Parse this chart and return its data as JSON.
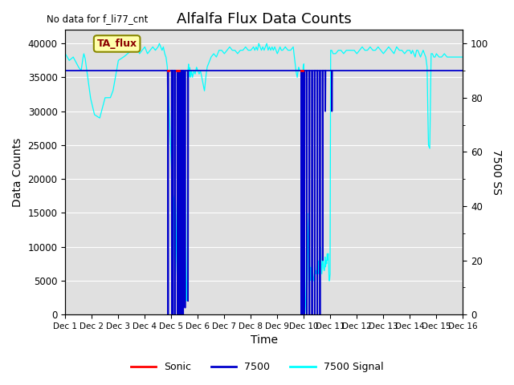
{
  "title": "Alfalfa Flux Data Counts",
  "subtitle": "No data for f_li77_cnt",
  "xlabel": "Time",
  "ylabel": "Data Counts",
  "ylabel_right": "7500 SS",
  "ylim": [
    0,
    42000
  ],
  "ylim_right": [
    0,
    105
  ],
  "xlim": [
    0,
    15
  ],
  "xtick_labels": [
    "Dec 1",
    "Dec 2",
    "Dec 3",
    "Dec 4",
    "Dec 5",
    "Dec 6",
    "Dec 7",
    "Dec 8",
    "Dec 9",
    "Dec 10",
    "Dec 11",
    "Dec 12",
    "Dec 13",
    "Dec 14",
    "Dec 15",
    "Dec 16"
  ],
  "yticks_left": [
    0,
    5000,
    10000,
    15000,
    20000,
    25000,
    30000,
    35000,
    40000
  ],
  "yticks_right": [
    0,
    20,
    40,
    60,
    80,
    100
  ],
  "background_color": "#e0e0e0",
  "legend_items": [
    "Sonic",
    "7500",
    "7500 Signal"
  ],
  "legend_colors": [
    "#ff0000",
    "#0000cc",
    "#00ccff"
  ],
  "ta_flux_label": "TA_flux",
  "title_fontsize": 13,
  "axis_fontsize": 10,
  "cyan_pts": [
    [
      0.0,
      38500
    ],
    [
      0.15,
      37500
    ],
    [
      0.3,
      38000
    ],
    [
      0.5,
      36500
    ],
    [
      0.6,
      36000
    ],
    [
      0.65,
      37500
    ],
    [
      0.7,
      38500
    ],
    [
      0.75,
      37800
    ],
    [
      0.85,
      35000
    ],
    [
      0.95,
      32000
    ],
    [
      1.1,
      29500
    ],
    [
      1.3,
      29000
    ],
    [
      1.5,
      32000
    ],
    [
      1.7,
      32000
    ],
    [
      1.8,
      33000
    ],
    [
      2.0,
      37500
    ],
    [
      2.2,
      38000
    ],
    [
      2.5,
      39000
    ],
    [
      2.7,
      39500
    ],
    [
      2.8,
      38500
    ],
    [
      2.9,
      39000
    ],
    [
      3.0,
      39500
    ],
    [
      3.1,
      38500
    ],
    [
      3.2,
      39000
    ],
    [
      3.3,
      39500
    ],
    [
      3.4,
      39000
    ],
    [
      3.5,
      39500
    ],
    [
      3.55,
      40000
    ],
    [
      3.6,
      39500
    ],
    [
      3.65,
      39000
    ],
    [
      3.7,
      39500
    ],
    [
      3.75,
      38500
    ],
    [
      3.8,
      38000
    ],
    [
      3.85,
      36500
    ],
    [
      3.9,
      32000
    ],
    [
      3.95,
      27000
    ],
    [
      4.0,
      22000
    ],
    [
      4.05,
      18000
    ],
    [
      4.1,
      17000
    ],
    [
      4.12,
      9000
    ],
    [
      4.15,
      5000
    ],
    [
      4.18,
      9000
    ],
    [
      4.2,
      14000
    ],
    [
      4.22,
      17000
    ],
    [
      4.25,
      20000
    ],
    [
      4.27,
      9000
    ],
    [
      4.3,
      5000
    ],
    [
      4.32,
      1000
    ],
    [
      4.35,
      500
    ],
    [
      4.37,
      3000
    ],
    [
      4.4,
      7000
    ],
    [
      4.45,
      9000
    ],
    [
      4.48,
      13000
    ],
    [
      4.5,
      16000
    ],
    [
      4.52,
      9000
    ],
    [
      4.55,
      5000
    ],
    [
      4.57,
      2000
    ],
    [
      4.59,
      5000
    ],
    [
      4.6,
      9000
    ],
    [
      4.63,
      36000
    ],
    [
      4.65,
      37000
    ],
    [
      4.68,
      35000
    ],
    [
      4.7,
      36500
    ],
    [
      4.73,
      35000
    ],
    [
      4.76,
      36000
    ],
    [
      4.8,
      35000
    ],
    [
      4.85,
      36000
    ],
    [
      4.9,
      35500
    ],
    [
      4.95,
      36500
    ],
    [
      5.0,
      36000
    ],
    [
      5.05,
      35500
    ],
    [
      5.1,
      36000
    ],
    [
      5.15,
      35000
    ],
    [
      5.2,
      34000
    ],
    [
      5.25,
      33000
    ],
    [
      5.3,
      35000
    ],
    [
      5.35,
      36500
    ],
    [
      5.4,
      37000
    ],
    [
      5.5,
      38000
    ],
    [
      5.6,
      38500
    ],
    [
      5.7,
      38000
    ],
    [
      5.8,
      39000
    ],
    [
      5.9,
      39000
    ],
    [
      6.0,
      38500
    ],
    [
      6.1,
      39000
    ],
    [
      6.2,
      39500
    ],
    [
      6.3,
      39000
    ],
    [
      6.4,
      39000
    ],
    [
      6.5,
      38500
    ],
    [
      6.6,
      39000
    ],
    [
      6.7,
      39000
    ],
    [
      6.8,
      39500
    ],
    [
      6.9,
      39000
    ],
    [
      7.0,
      39000
    ],
    [
      7.1,
      39500
    ],
    [
      7.15,
      39000
    ],
    [
      7.2,
      39500
    ],
    [
      7.25,
      39000
    ],
    [
      7.3,
      40000
    ],
    [
      7.35,
      39500
    ],
    [
      7.4,
      39000
    ],
    [
      7.45,
      39500
    ],
    [
      7.5,
      39000
    ],
    [
      7.55,
      39500
    ],
    [
      7.6,
      40000
    ],
    [
      7.65,
      39000
    ],
    [
      7.7,
      39500
    ],
    [
      7.75,
      39000
    ],
    [
      7.8,
      39500
    ],
    [
      7.85,
      39000
    ],
    [
      7.9,
      39500
    ],
    [
      7.95,
      39000
    ],
    [
      8.0,
      38500
    ],
    [
      8.05,
      39000
    ],
    [
      8.1,
      39500
    ],
    [
      8.15,
      39000
    ],
    [
      8.2,
      39000
    ],
    [
      8.3,
      39500
    ],
    [
      8.4,
      39000
    ],
    [
      8.5,
      39000
    ],
    [
      8.6,
      39500
    ],
    [
      8.7,
      36000
    ],
    [
      8.75,
      35000
    ],
    [
      8.8,
      36500
    ],
    [
      8.85,
      36000
    ],
    [
      8.88,
      36000
    ],
    [
      8.9,
      35000
    ],
    [
      8.93,
      34000
    ],
    [
      8.95,
      33000
    ],
    [
      8.97,
      36500
    ],
    [
      9.0,
      37000
    ],
    [
      9.02,
      15000
    ],
    [
      9.04,
      6000
    ],
    [
      9.06,
      2000
    ],
    [
      9.08,
      500
    ],
    [
      9.1,
      0
    ],
    [
      9.12,
      3000
    ],
    [
      9.14,
      6000
    ],
    [
      9.16,
      12000
    ],
    [
      9.18,
      15000
    ],
    [
      9.2,
      14000
    ],
    [
      9.22,
      6000
    ],
    [
      9.24,
      5000
    ],
    [
      9.26,
      7000
    ],
    [
      9.28,
      5000
    ],
    [
      9.3,
      6000
    ],
    [
      9.32,
      7000
    ],
    [
      9.34,
      6000
    ],
    [
      9.36,
      5000
    ],
    [
      9.38,
      5000
    ],
    [
      9.4,
      6000
    ],
    [
      9.42,
      8000
    ],
    [
      9.44,
      6000
    ],
    [
      9.46,
      6500
    ],
    [
      9.48,
      6000
    ],
    [
      9.5,
      6500
    ],
    [
      9.52,
      6000
    ],
    [
      9.54,
      8000
    ],
    [
      9.56,
      6000
    ],
    [
      9.58,
      6000
    ],
    [
      9.6,
      8000
    ],
    [
      9.62,
      10000
    ],
    [
      9.65,
      8000
    ],
    [
      9.68,
      6000
    ],
    [
      9.7,
      8000
    ],
    [
      9.72,
      8700
    ],
    [
      9.74,
      7000
    ],
    [
      9.76,
      6500
    ],
    [
      9.78,
      6500
    ],
    [
      9.8,
      8500
    ],
    [
      9.82,
      7000
    ],
    [
      9.84,
      8000
    ],
    [
      9.86,
      7500
    ],
    [
      9.88,
      9000
    ],
    [
      9.9,
      8000
    ],
    [
      9.92,
      9000
    ],
    [
      9.95,
      5000
    ],
    [
      9.97,
      5000
    ],
    [
      9.99,
      6000
    ],
    [
      10.01,
      39000
    ],
    [
      10.05,
      39000
    ],
    [
      10.1,
      38500
    ],
    [
      10.2,
      38500
    ],
    [
      10.3,
      39000
    ],
    [
      10.4,
      39000
    ],
    [
      10.5,
      38500
    ],
    [
      10.6,
      39000
    ],
    [
      10.7,
      39000
    ],
    [
      10.8,
      39000
    ],
    [
      10.9,
      39000
    ],
    [
      11.0,
      38500
    ],
    [
      11.1,
      39000
    ],
    [
      11.2,
      39500
    ],
    [
      11.3,
      39000
    ],
    [
      11.4,
      39000
    ],
    [
      11.5,
      39500
    ],
    [
      11.6,
      39000
    ],
    [
      11.7,
      39000
    ],
    [
      11.8,
      39500
    ],
    [
      11.9,
      39000
    ],
    [
      12.0,
      38500
    ],
    [
      12.1,
      39000
    ],
    [
      12.2,
      39500
    ],
    [
      12.3,
      39000
    ],
    [
      12.4,
      38500
    ],
    [
      12.5,
      39500
    ],
    [
      12.6,
      39000
    ],
    [
      12.7,
      39000
    ],
    [
      12.8,
      38500
    ],
    [
      12.9,
      39000
    ],
    [
      13.0,
      39000
    ],
    [
      13.05,
      38500
    ],
    [
      13.1,
      39000
    ],
    [
      13.15,
      38500
    ],
    [
      13.2,
      38000
    ],
    [
      13.25,
      39000
    ],
    [
      13.3,
      39000
    ],
    [
      13.35,
      38500
    ],
    [
      13.4,
      38000
    ],
    [
      13.45,
      38500
    ],
    [
      13.5,
      39000
    ],
    [
      13.55,
      38500
    ],
    [
      13.6,
      38000
    ],
    [
      13.65,
      36500
    ],
    [
      13.7,
      25000
    ],
    [
      13.75,
      24500
    ],
    [
      13.8,
      38500
    ],
    [
      13.85,
      38500
    ],
    [
      13.9,
      38000
    ],
    [
      13.95,
      38000
    ],
    [
      14.0,
      38500
    ],
    [
      14.1,
      38000
    ],
    [
      14.2,
      38000
    ],
    [
      14.3,
      38500
    ],
    [
      14.4,
      38000
    ],
    [
      14.5,
      38000
    ],
    [
      14.6,
      38000
    ],
    [
      14.7,
      38000
    ],
    [
      14.8,
      38000
    ],
    [
      14.9,
      38000
    ],
    [
      15.0,
      38000
    ]
  ],
  "blue_pts": [
    [
      0.0,
      36000
    ],
    [
      3.85,
      36000
    ],
    [
      3.86,
      36000
    ],
    [
      3.87,
      32000
    ],
    [
      3.88,
      0
    ],
    [
      3.89,
      36000
    ],
    [
      4.0,
      36000
    ],
    [
      4.01,
      36000
    ],
    [
      4.02,
      0
    ],
    [
      4.03,
      36000
    ],
    [
      4.04,
      36000
    ],
    [
      4.05,
      0
    ],
    [
      4.06,
      36000
    ],
    [
      4.1,
      36000
    ],
    [
      4.12,
      36000
    ],
    [
      4.13,
      0
    ],
    [
      4.14,
      36000
    ],
    [
      4.2,
      36000
    ],
    [
      4.22,
      36000
    ],
    [
      4.23,
      0
    ],
    [
      4.24,
      36000
    ],
    [
      4.26,
      36000
    ],
    [
      4.27,
      0
    ],
    [
      4.28,
      36000
    ],
    [
      4.3,
      36000
    ],
    [
      4.31,
      36000
    ],
    [
      4.32,
      0
    ],
    [
      4.33,
      36000
    ],
    [
      4.35,
      36000
    ],
    [
      4.36,
      0
    ],
    [
      4.37,
      36000
    ],
    [
      4.4,
      36000
    ],
    [
      4.41,
      36000
    ],
    [
      4.42,
      0
    ],
    [
      4.43,
      36000
    ],
    [
      4.44,
      36000
    ],
    [
      4.45,
      0
    ],
    [
      4.46,
      36000
    ],
    [
      4.5,
      36000
    ],
    [
      4.51,
      36000
    ],
    [
      4.52,
      1000
    ],
    [
      4.53,
      36000
    ],
    [
      4.6,
      36000
    ],
    [
      4.62,
      36000
    ],
    [
      4.63,
      2000
    ],
    [
      4.64,
      36000
    ],
    [
      5.0,
      36000
    ],
    [
      8.88,
      36000
    ],
    [
      8.9,
      36000
    ],
    [
      8.91,
      0
    ],
    [
      8.92,
      36000
    ],
    [
      8.95,
      36000
    ],
    [
      8.96,
      0
    ],
    [
      8.97,
      36000
    ],
    [
      9.0,
      36000
    ],
    [
      9.01,
      36000
    ],
    [
      9.02,
      0
    ],
    [
      9.03,
      36000
    ],
    [
      9.1,
      36000
    ],
    [
      9.11,
      0
    ],
    [
      9.12,
      36000
    ],
    [
      9.2,
      36000
    ],
    [
      9.21,
      0
    ],
    [
      9.22,
      36000
    ],
    [
      9.3,
      36000
    ],
    [
      9.31,
      0
    ],
    [
      9.32,
      36000
    ],
    [
      9.4,
      36000
    ],
    [
      9.41,
      0
    ],
    [
      9.42,
      36000
    ],
    [
      9.5,
      36000
    ],
    [
      9.51,
      0
    ],
    [
      9.52,
      36000
    ],
    [
      9.6,
      36000
    ],
    [
      9.61,
      0
    ],
    [
      9.62,
      36000
    ],
    [
      9.7,
      36000
    ],
    [
      9.71,
      8000
    ],
    [
      9.72,
      36000
    ],
    [
      9.8,
      36000
    ],
    [
      9.81,
      30000
    ],
    [
      9.82,
      36000
    ],
    [
      10.0,
      36000
    ],
    [
      10.01,
      36000
    ],
    [
      10.05,
      36000
    ],
    [
      10.06,
      30000
    ],
    [
      10.07,
      36000
    ],
    [
      15.0,
      36000
    ]
  ],
  "red_pts": [
    [
      3.87,
      36000
    ],
    [
      3.9,
      36000
    ],
    [
      4.2,
      36000
    ],
    [
      4.22,
      36000
    ],
    [
      4.25,
      36000
    ],
    [
      4.28,
      36000
    ],
    [
      8.9,
      36000
    ],
    [
      8.95,
      36000
    ],
    [
      9.8,
      36000
    ],
    [
      9.82,
      36000
    ]
  ]
}
